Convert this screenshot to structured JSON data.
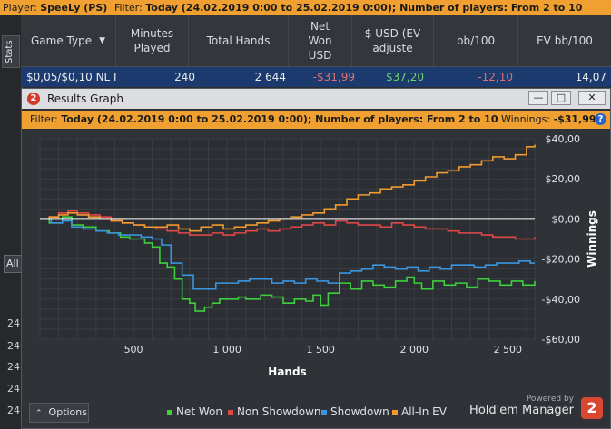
{
  "top_bar": {
    "player_label": "Player: ",
    "player_value": "SpeeLy (PS)",
    "filter_label": "Filter: ",
    "filter_value": "Today (24.02.2019 0:00 to 25.02.2019 0:00); Number of players: From 2 to 10"
  },
  "side_tab": {
    "label": "Stats"
  },
  "table": {
    "headers": [
      "Game Type",
      "Minutes Played",
      "Total Hands",
      "Net Won USD",
      "$ USD (EV adjuste",
      "bb/100",
      "EV bb/100"
    ],
    "row": [
      "$0,05/$0,10 NL I",
      "240",
      "2 644",
      "-$31,99",
      "$37,20",
      "-12,10",
      "14,07"
    ]
  },
  "side_left": {
    "all_box": "All",
    "rows": [
      "24",
      "24",
      "24",
      "24",
      "24"
    ]
  },
  "window": {
    "title": "Results Graph",
    "filter_label": "Filter: ",
    "filter_value": "Today (24.02.2019 0:00 to 25.02.2019 0:00); Number of players: From 2 to 10",
    "winnings_label": "Winnings: ",
    "winnings_value": "-$31,99",
    "options_label": "Options",
    "powered_by": "Powered by",
    "brand": "Hold'em Manager"
  },
  "colors": {
    "net_won": "#3ecf3e",
    "non_showdown": "#e04848",
    "showdown": "#3a96e0",
    "allin_ev": "#f09a30",
    "zero_line": "#ffffff"
  },
  "chart_data": {
    "type": "line",
    "xlabel": "Hands",
    "ylabel": "Winnings",
    "xlim": [
      0,
      2644
    ],
    "ylim": [
      -60,
      40
    ],
    "xticks": [
      500,
      1000,
      1500,
      2000,
      2500
    ],
    "xtick_labels": [
      "500",
      "1 000",
      "1 500",
      "2 000",
      "2 500"
    ],
    "yticks": [
      40,
      20,
      0,
      -20,
      -40,
      -60
    ],
    "ytick_labels": [
      "$40,00",
      "$20,00",
      "$0,00",
      "-$20,00",
      "-$40,00",
      "-$60,00"
    ],
    "grid": true,
    "legend": "bottom",
    "series": [
      {
        "name": "Net Won",
        "x": [
          0,
          50,
          120,
          170,
          230,
          300,
          370,
          430,
          480,
          560,
          600,
          640,
          680,
          720,
          760,
          800,
          830,
          880,
          920,
          960,
          1000,
          1060,
          1100,
          1180,
          1240,
          1300,
          1360,
          1420,
          1460,
          1500,
          1540,
          1600,
          1660,
          1720,
          1780,
          1840,
          1900,
          1960,
          2000,
          2040,
          2100,
          2160,
          2220,
          2280,
          2340,
          2400,
          2460,
          2520,
          2580,
          2644
        ],
        "y": [
          0,
          -2,
          1,
          -3,
          -4,
          -6,
          -7,
          -9,
          -10,
          -12,
          -14,
          -22,
          -24,
          -30,
          -40,
          -42,
          -46,
          -44,
          -42,
          -40,
          -40,
          -39,
          -40,
          -38,
          -39,
          -42,
          -40,
          -41,
          -38,
          -43,
          -37,
          -32,
          -35,
          -31,
          -33,
          -34,
          -31,
          -29,
          -32,
          -35,
          -31,
          -33,
          -32,
          -34,
          -30,
          -31,
          -33,
          -31,
          -33,
          -31
        ]
      },
      {
        "name": "Non Showdown",
        "x": [
          0,
          50,
          100,
          150,
          200,
          260,
          320,
          380,
          440,
          500,
          560,
          620,
          680,
          740,
          800,
          860,
          920,
          980,
          1040,
          1100,
          1160,
          1220,
          1280,
          1340,
          1400,
          1460,
          1520,
          1580,
          1640,
          1700,
          1760,
          1820,
          1880,
          1940,
          2000,
          2060,
          2120,
          2180,
          2240,
          2300,
          2360,
          2420,
          2480,
          2540,
          2600,
          2644
        ],
        "y": [
          0,
          1,
          3,
          4,
          3,
          2,
          1,
          -1,
          -2,
          -3,
          -4,
          -5,
          -6,
          -7,
          -8,
          -8,
          -7,
          -8,
          -7,
          -6,
          -5,
          -6,
          -5,
          -4,
          -3,
          -2,
          -3,
          -1,
          -2,
          -3,
          -3,
          -4,
          -2,
          -3,
          -4,
          -5,
          -5,
          -6,
          -7,
          -7,
          -8,
          -9,
          -9,
          -10,
          -10,
          -9
        ]
      },
      {
        "name": "Showdown",
        "x": [
          0,
          60,
          120,
          170,
          230,
          300,
          360,
          420,
          480,
          540,
          600,
          650,
          700,
          760,
          820,
          880,
          940,
          1000,
          1060,
          1120,
          1180,
          1240,
          1300,
          1360,
          1420,
          1480,
          1540,
          1600,
          1660,
          1720,
          1780,
          1840,
          1900,
          1960,
          2020,
          2080,
          2140,
          2200,
          2260,
          2320,
          2380,
          2440,
          2500,
          2560,
          2620,
          2644
        ],
        "y": [
          0,
          -2,
          -1,
          -4,
          -5,
          -6,
          -7,
          -8,
          -8,
          -9,
          -10,
          -13,
          -22,
          -28,
          -35,
          -35,
          -32,
          -32,
          -31,
          -30,
          -30,
          -32,
          -31,
          -32,
          -30,
          -31,
          -32,
          -27,
          -26,
          -25,
          -23,
          -24,
          -25,
          -24,
          -26,
          -24,
          -25,
          -23,
          -23,
          -24,
          -23,
          -22,
          -22,
          -21,
          -22,
          -22
        ]
      },
      {
        "name": "All-In EV",
        "x": [
          0,
          50,
          100,
          150,
          200,
          260,
          320,
          380,
          440,
          500,
          560,
          620,
          680,
          740,
          800,
          860,
          920,
          980,
          1040,
          1100,
          1160,
          1220,
          1280,
          1340,
          1400,
          1460,
          1520,
          1580,
          1640,
          1700,
          1760,
          1820,
          1880,
          1940,
          2000,
          2060,
          2120,
          2180,
          2240,
          2300,
          2360,
          2420,
          2480,
          2540,
          2600,
          2644
        ],
        "y": [
          0,
          1,
          2,
          3,
          2,
          1,
          0,
          -1,
          -2,
          -3,
          -4,
          -4,
          -3,
          -5,
          -6,
          -4,
          -3,
          -5,
          -4,
          -3,
          -2,
          -1,
          0,
          1,
          2,
          3,
          5,
          7,
          10,
          12,
          13,
          15,
          16,
          17,
          19,
          21,
          23,
          24,
          26,
          27,
          29,
          31,
          30,
          32,
          36,
          37
        ]
      }
    ]
  }
}
